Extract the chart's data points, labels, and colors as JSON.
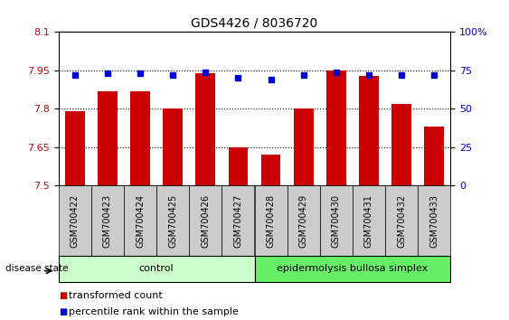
{
  "title": "GDS4426 / 8036720",
  "samples": [
    "GSM700422",
    "GSM700423",
    "GSM700424",
    "GSM700425",
    "GSM700426",
    "GSM700427",
    "GSM700428",
    "GSM700429",
    "GSM700430",
    "GSM700431",
    "GSM700432",
    "GSM700433"
  ],
  "red_values": [
    7.79,
    7.87,
    7.87,
    7.8,
    7.94,
    7.65,
    7.62,
    7.8,
    7.95,
    7.93,
    7.82,
    7.73
  ],
  "blue_values": [
    72,
    73,
    73,
    72,
    74,
    70,
    69,
    72,
    74,
    72,
    72,
    72
  ],
  "ylim": [
    7.5,
    8.1
  ],
  "y2lim": [
    0,
    100
  ],
  "yticks": [
    7.5,
    7.65,
    7.8,
    7.95,
    8.1
  ],
  "ytick_labels": [
    "7.5",
    "7.65",
    "7.8",
    "7.95",
    "8.1"
  ],
  "y2ticks": [
    0,
    25,
    50,
    75,
    100
  ],
  "y2tick_labels": [
    "0",
    "25",
    "50",
    "75",
    "100%"
  ],
  "hlines": [
    7.65,
    7.8,
    7.95
  ],
  "n_control": 6,
  "n_ebs": 6,
  "control_label": "control",
  "ebs_label": "epidermolysis bullosa simplex",
  "disease_state_label": "disease state",
  "legend_red": "transformed count",
  "legend_blue": "percentile rank within the sample",
  "bar_color": "#cc0000",
  "blue_color": "#0000cc",
  "control_bg": "#ccffcc",
  "ebs_bg": "#66ee66",
  "sample_bg": "#cccccc",
  "bar_width": 0.6,
  "base_value": 7.5,
  "fig_width": 5.63,
  "fig_height": 3.54
}
